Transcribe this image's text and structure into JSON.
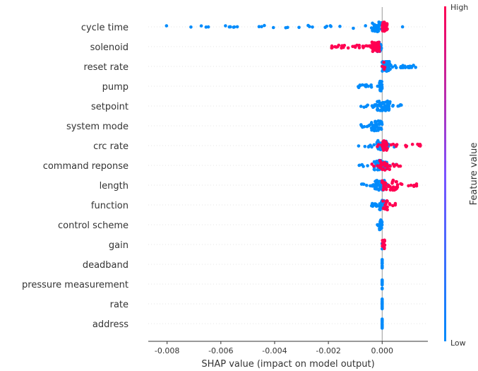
{
  "chart_data": {
    "type": "scatter",
    "subtype": "shap-beeswarm",
    "xlabel": "SHAP value (impact on model output)",
    "xlim": [
      -0.0087,
      0.0017
    ],
    "xticks": [
      "-0.008",
      "-0.006",
      "-0.004",
      "-0.002",
      "0.000"
    ],
    "xtick_values": [
      -0.008,
      -0.006,
      -0.004,
      -0.002,
      0.0
    ],
    "colorbar": {
      "label": "Feature value",
      "high_label": "High",
      "low_label": "Low",
      "high_color": "#ff0052",
      "low_color": "#008bfb"
    },
    "features": [
      {
        "name": "cycle time",
        "low_range": [
          -0.0083,
          0.0008
        ],
        "low_core": [
          -0.0004,
          0.0
        ],
        "high_range": [
          0.0,
          0.0002
        ],
        "high_core": [
          0.0,
          0.0002
        ],
        "blue_n": 70,
        "red_n": 30
      },
      {
        "name": "solenoid",
        "low_range": [
          -0.0002,
          0.0
        ],
        "low_core": [
          -0.0002,
          0.0
        ],
        "high_range": [
          -0.0019,
          -0.0001
        ],
        "high_core": [
          -0.0004,
          -0.0001
        ],
        "blue_n": 20,
        "red_n": 90
      },
      {
        "name": "reset rate",
        "low_range": [
          0.0,
          0.0013
        ],
        "low_core": [
          0.0,
          0.0003
        ],
        "high_range": [
          0.0,
          0.0001
        ],
        "high_core": [
          0.0,
          0.0001
        ],
        "blue_n": 90,
        "red_n": 4
      },
      {
        "name": "pump",
        "low_range": [
          -0.0011,
          0.0
        ],
        "low_core": [
          -0.0001,
          0.0
        ],
        "high_range": [
          0.0,
          0.0
        ],
        "high_core": [
          0.0,
          0.0
        ],
        "blue_n": 50,
        "red_n": 0
      },
      {
        "name": "setpoint",
        "low_range": [
          -0.0008,
          0.0008
        ],
        "low_core": [
          -0.0002,
          0.0003
        ],
        "high_range": [
          0.0,
          0.0
        ],
        "high_core": [
          0.0,
          0.0
        ],
        "blue_n": 60,
        "red_n": 0
      },
      {
        "name": "system mode",
        "low_range": [
          -0.0008,
          0.0
        ],
        "low_core": [
          -0.0004,
          0.0
        ],
        "high_range": [
          0.0,
          0.0
        ],
        "high_core": [
          0.0,
          0.0
        ],
        "blue_n": 50,
        "red_n": 0
      },
      {
        "name": "crc rate",
        "low_range": [
          -0.001,
          0.0006
        ],
        "low_core": [
          -0.0002,
          0.0002
        ],
        "high_range": [
          -0.0002,
          0.0015
        ],
        "high_core": [
          0.0,
          0.0002
        ],
        "blue_n": 50,
        "red_n": 35
      },
      {
        "name": "command reponse",
        "low_range": [
          -0.0009,
          0.0006
        ],
        "low_core": [
          -0.0003,
          0.0002
        ],
        "high_range": [
          -0.0004,
          0.0007
        ],
        "high_core": [
          -0.0001,
          0.0003
        ],
        "blue_n": 50,
        "red_n": 35
      },
      {
        "name": "length",
        "low_range": [
          -0.0008,
          0.0002
        ],
        "low_core": [
          -0.0003,
          0.0001
        ],
        "high_range": [
          0.0,
          0.0013
        ],
        "high_core": [
          0.0,
          0.0006
        ],
        "blue_n": 55,
        "red_n": 45
      },
      {
        "name": "function",
        "low_range": [
          -0.0004,
          0.0001
        ],
        "low_core": [
          -0.0001,
          0.0001
        ],
        "high_range": [
          0.0,
          0.0005
        ],
        "high_core": [
          0.0,
          0.0002
        ],
        "blue_n": 40,
        "red_n": 20
      },
      {
        "name": "control scheme",
        "low_range": [
          -0.0002,
          0.0
        ],
        "low_core": [
          -0.0001,
          0.0
        ],
        "high_range": [
          0.0,
          0.0
        ],
        "high_core": [
          0.0,
          0.0
        ],
        "blue_n": 25,
        "red_n": 0
      },
      {
        "name": "gain",
        "low_range": [
          0.0,
          0.0
        ],
        "low_core": [
          0.0,
          0.0
        ],
        "high_range": [
          0.0,
          0.0001
        ],
        "high_core": [
          0.0,
          0.0001
        ],
        "blue_n": 3,
        "red_n": 18
      },
      {
        "name": "deadband",
        "low_range": [
          0.0,
          0.0
        ],
        "low_core": [
          0.0,
          0.0
        ],
        "high_range": [
          0.0,
          0.0
        ],
        "high_core": [
          0.0,
          0.0
        ],
        "blue_n": 15,
        "red_n": 0
      },
      {
        "name": "pressure measurement",
        "low_range": [
          0.0,
          0.0
        ],
        "low_core": [
          0.0,
          0.0
        ],
        "high_range": [
          0.0,
          0.0
        ],
        "high_core": [
          0.0,
          0.0
        ],
        "blue_n": 15,
        "red_n": 0
      },
      {
        "name": "rate",
        "low_range": [
          0.0,
          0.0
        ],
        "low_core": [
          0.0,
          0.0
        ],
        "high_range": [
          0.0,
          0.0
        ],
        "high_core": [
          0.0,
          0.0
        ],
        "blue_n": 15,
        "red_n": 0
      },
      {
        "name": "address",
        "low_range": [
          0.0,
          0.0
        ],
        "low_core": [
          0.0,
          0.0
        ],
        "high_range": [
          0.0,
          0.0
        ],
        "high_core": [
          0.0,
          0.0
        ],
        "blue_n": 15,
        "red_n": 0
      }
    ]
  }
}
